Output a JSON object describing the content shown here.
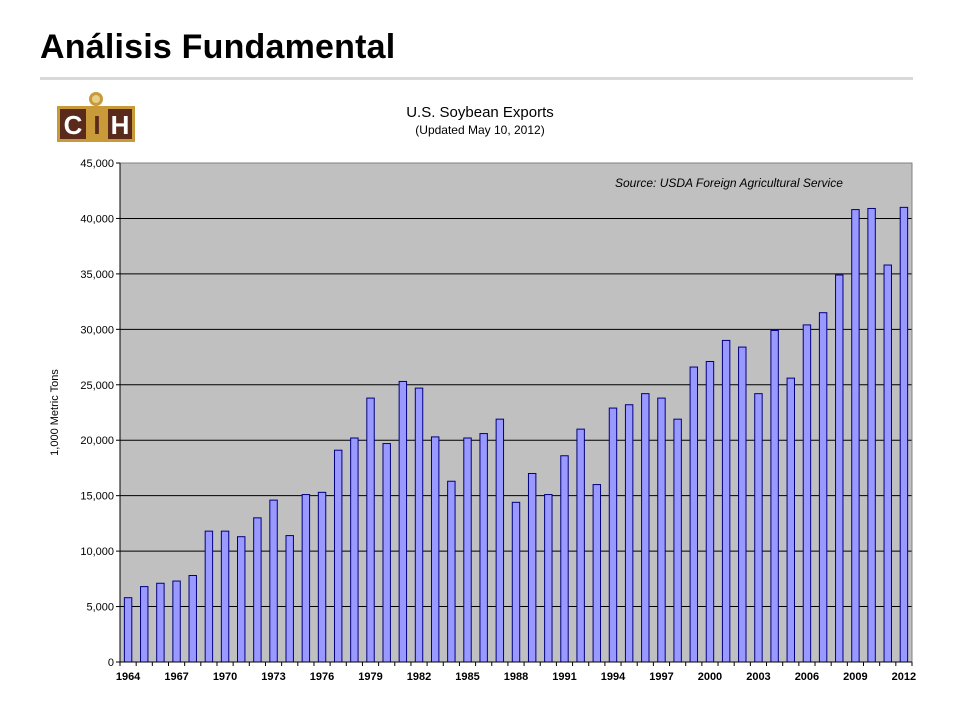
{
  "slide": {
    "title": "Análisis Fundamental",
    "logo_text": "CIH"
  },
  "colors": {
    "plot_background": "#c0c0c0",
    "bar_fill": "#9999ff",
    "bar_stroke": "#000080",
    "grid": "#000000"
  },
  "chart_data": {
    "type": "bar",
    "title": "U.S. Soybean Exports",
    "subtitle": "(Updated May 10, 2012)",
    "annotation": "Source: USDA Foreign Agricultural Service",
    "xlabel": "",
    "ylabel": "1,000 Metric Tons",
    "ylim": [
      0,
      45000
    ],
    "yticks": [
      0,
      5000,
      10000,
      15000,
      20000,
      25000,
      30000,
      35000,
      40000,
      45000
    ],
    "ytick_labels": [
      "0",
      "5,000",
      "10,000",
      "15,000",
      "20,000",
      "25,000",
      "30,000",
      "35,000",
      "40,000",
      "45,000"
    ],
    "grid": true,
    "legend": "none",
    "xtick_labels": [
      "1964",
      "1967",
      "1970",
      "1973",
      "1976",
      "1979",
      "1982",
      "1985",
      "1988",
      "1991",
      "1994",
      "1997",
      "2000",
      "2003",
      "2006",
      "2009",
      "2012"
    ],
    "categories": [
      "1964",
      "1965",
      "1966",
      "1967",
      "1968",
      "1969",
      "1970",
      "1971",
      "1972",
      "1973",
      "1974",
      "1975",
      "1976",
      "1977",
      "1978",
      "1979",
      "1980",
      "1981",
      "1982",
      "1983",
      "1984",
      "1985",
      "1986",
      "1987",
      "1988",
      "1989",
      "1990",
      "1991",
      "1992",
      "1993",
      "1994",
      "1995",
      "1996",
      "1997",
      "1998",
      "1999",
      "2000",
      "2001",
      "2002",
      "2003",
      "2004",
      "2005",
      "2006",
      "2007",
      "2008",
      "2009",
      "2010",
      "2011",
      "2012"
    ],
    "values": [
      5800,
      6800,
      7100,
      7300,
      7800,
      11800,
      11800,
      11300,
      13000,
      14600,
      11400,
      15100,
      15300,
      19100,
      20200,
      23800,
      19700,
      25300,
      24700,
      20300,
      16300,
      20200,
      20600,
      21900,
      14400,
      17000,
      15100,
      18600,
      21000,
      16000,
      22900,
      23200,
      24200,
      23800,
      21900,
      26600,
      27100,
      29000,
      28400,
      24200,
      29900,
      25600,
      30400,
      31500,
      34900,
      40800,
      40900,
      35800,
      41000
    ]
  }
}
